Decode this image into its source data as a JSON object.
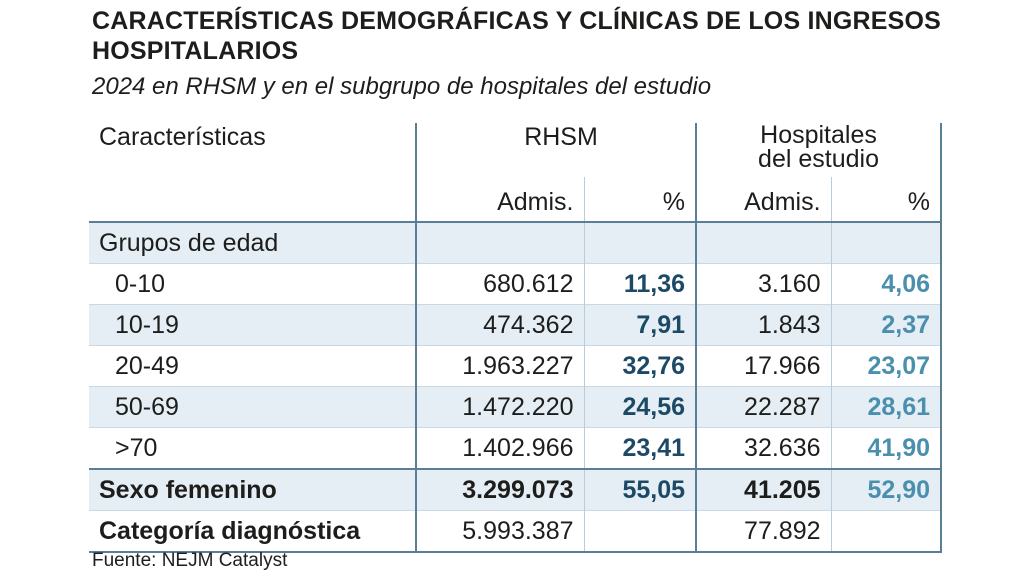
{
  "title": "CARACTERÍSTICAS DEMOGRÁFICAS Y CLÍNICAS DE LOS INGRESOS HOSPITALARIOS",
  "subtitle": "2024 en RHSM y en el subgrupo de hospitales del estudio",
  "source": "Fuente: NEJM Catalyst",
  "header": {
    "characteristics": "Características",
    "group1": "RHSM",
    "group2_line1": "Hospitales",
    "group2_line2": "del estudio",
    "admis": "Admis.",
    "pct": "%"
  },
  "section_age": "Grupos de edad",
  "age_rows": [
    {
      "label": "0-10",
      "rhsm_admis": "680.612",
      "rhsm_pct": "11,36",
      "study_admis": "3.160",
      "study_pct": "4,06"
    },
    {
      "label": "10-19",
      "rhsm_admis": "474.362",
      "rhsm_pct": "7,91",
      "study_admis": "1.843",
      "study_pct": "2,37"
    },
    {
      "label": "20-49",
      "rhsm_admis": "1.963.227",
      "rhsm_pct": "32,76",
      "study_admis": "17.966",
      "study_pct": "23,07"
    },
    {
      "label": "50-69",
      "rhsm_admis": "1.472.220",
      "rhsm_pct": "24,56",
      "study_admis": "22.287",
      "study_pct": "28,61"
    },
    {
      "label": ">70",
      "rhsm_admis": "1.402.966",
      "rhsm_pct": "23,41",
      "study_admis": "32.636",
      "study_pct": "41,90"
    }
  ],
  "female_row": {
    "label": "Sexo femenino",
    "rhsm_admis": "3.299.073",
    "rhsm_pct": "55,05",
    "study_admis": "41.205",
    "study_pct": "52,90"
  },
  "diag_row": {
    "label": "Categoría diagnóstica",
    "rhsm_admis": "5.993.387",
    "rhsm_pct": "",
    "study_admis": "77.892",
    "study_pct": ""
  },
  "colors": {
    "dark_pct": "#1c4a66",
    "light_pct": "#4a8fad",
    "shade": "#e5eef4",
    "rule": "#5a7e95"
  }
}
